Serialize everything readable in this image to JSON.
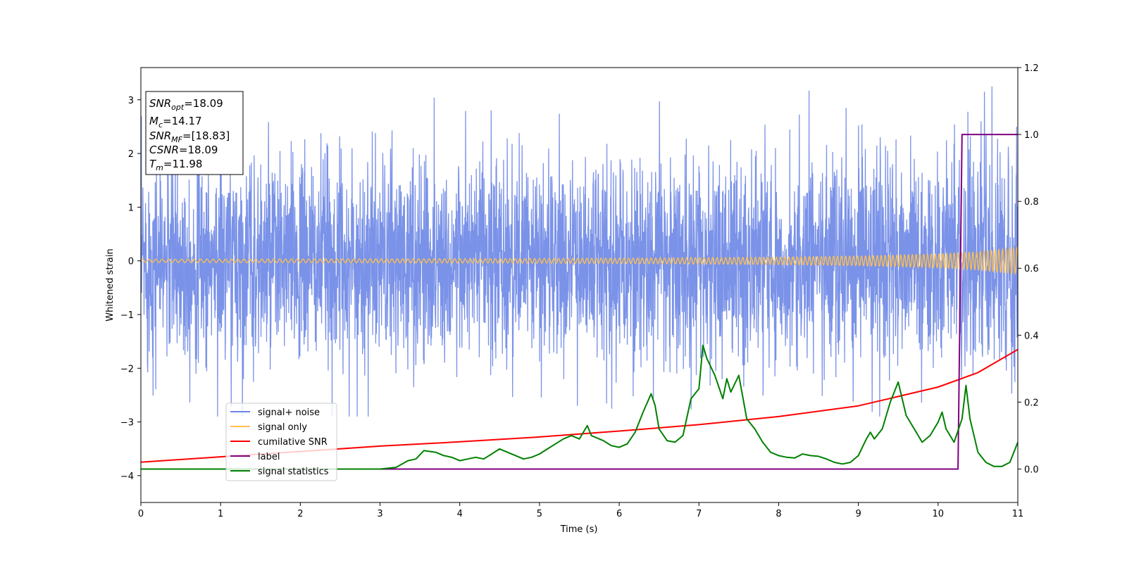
{
  "chart_data": {
    "type": "line",
    "xlabel": "Time (s)",
    "ylabel": "Whitened strain",
    "xlim": [
      0,
      11
    ],
    "ylim_left": [
      -4.5,
      3.6
    ],
    "ylim_right": [
      -0.1,
      1.2
    ],
    "x_ticks": [
      0,
      1,
      2,
      3,
      4,
      5,
      6,
      7,
      8,
      9,
      10,
      11
    ],
    "y_ticks_left": [
      -4,
      -3,
      -2,
      -1,
      0,
      1,
      2,
      3
    ],
    "y_ticks_right": [
      0.0,
      0.2,
      0.4,
      0.6,
      0.8,
      1.0,
      1.2
    ],
    "grid": false,
    "legend_position": "lower-left",
    "colors": {
      "signal_noise": "#6b86e6",
      "signal_only": "#ffc04d",
      "cumulative_snr": "#ff0000",
      "label": "#800080",
      "signal_statistics": "#008000"
    },
    "series": [
      {
        "name": "signal+ noise",
        "axis": "left",
        "amplitude_envelope": [
          -2.9,
          3.25
        ]
      },
      {
        "name": "signal only",
        "axis": "left",
        "x": [
          0,
          2,
          4,
          6,
          8,
          9,
          10,
          10.5,
          11
        ],
        "amplitude": [
          0.03,
          0.035,
          0.04,
          0.05,
          0.07,
          0.09,
          0.13,
          0.17,
          0.25
        ]
      },
      {
        "name": "cumilative SNR",
        "axis": "left",
        "x": [
          0,
          1,
          2,
          3,
          4,
          5,
          6,
          7,
          8,
          9,
          10,
          10.5,
          11
        ],
        "values": [
          -3.75,
          -3.65,
          -3.55,
          -3.45,
          -3.37,
          -3.28,
          -3.17,
          -3.05,
          -2.9,
          -2.7,
          -2.35,
          -2.08,
          -1.65
        ]
      },
      {
        "name": "label",
        "axis": "right",
        "x": [
          0,
          10.25,
          10.3,
          11
        ],
        "values": [
          0,
          0,
          1,
          1
        ]
      },
      {
        "name": "signal statistics",
        "axis": "right",
        "x": [
          0,
          3.0,
          3.2,
          3.35,
          3.45,
          3.55,
          3.7,
          3.8,
          3.9,
          4.0,
          4.1,
          4.2,
          4.3,
          4.4,
          4.5,
          4.6,
          4.7,
          4.8,
          4.9,
          5.0,
          5.1,
          5.2,
          5.3,
          5.4,
          5.5,
          5.6,
          5.65,
          5.7,
          5.8,
          5.9,
          6.0,
          6.1,
          6.2,
          6.3,
          6.4,
          6.45,
          6.5,
          6.6,
          6.7,
          6.8,
          6.9,
          7.0,
          7.05,
          7.1,
          7.2,
          7.3,
          7.35,
          7.4,
          7.5,
          7.6,
          7.7,
          7.8,
          7.9,
          8.0,
          8.1,
          8.2,
          8.3,
          8.4,
          8.5,
          8.6,
          8.7,
          8.8,
          8.9,
          9.0,
          9.1,
          9.15,
          9.2,
          9.3,
          9.4,
          9.5,
          9.6,
          9.7,
          9.8,
          9.9,
          10.0,
          10.05,
          10.1,
          10.2,
          10.3,
          10.35,
          10.4,
          10.5,
          10.6,
          10.7,
          10.8,
          10.9,
          11.0
        ],
        "values": [
          0.0,
          0.0,
          0.005,
          0.025,
          0.03,
          0.055,
          0.05,
          0.04,
          0.035,
          0.025,
          0.03,
          0.035,
          0.03,
          0.045,
          0.06,
          0.05,
          0.04,
          0.03,
          0.035,
          0.045,
          0.06,
          0.075,
          0.09,
          0.1,
          0.09,
          0.13,
          0.1,
          0.095,
          0.085,
          0.07,
          0.065,
          0.075,
          0.11,
          0.17,
          0.225,
          0.19,
          0.12,
          0.085,
          0.08,
          0.1,
          0.21,
          0.24,
          0.37,
          0.33,
          0.28,
          0.21,
          0.27,
          0.23,
          0.28,
          0.15,
          0.12,
          0.08,
          0.05,
          0.04,
          0.035,
          0.033,
          0.045,
          0.04,
          0.038,
          0.03,
          0.02,
          0.015,
          0.02,
          0.04,
          0.09,
          0.11,
          0.09,
          0.12,
          0.2,
          0.26,
          0.16,
          0.12,
          0.08,
          0.1,
          0.14,
          0.17,
          0.12,
          0.08,
          0.15,
          0.25,
          0.15,
          0.05,
          0.02,
          0.008,
          0.008,
          0.02,
          0.08
        ]
      }
    ]
  },
  "annotation": {
    "lines": [
      {
        "sym": "SNR",
        "sub": "opt",
        "val": "=18.09"
      },
      {
        "sym": "M",
        "sub": "c",
        "val": "=14.17"
      },
      {
        "sym": "SNR",
        "sub": "MF",
        "val": "=[18.83]"
      },
      {
        "sym": "CSNR",
        "sub": "",
        "val": "=18.09"
      },
      {
        "sym": "T",
        "sub": "m",
        "val": "=11.98"
      }
    ]
  },
  "legend": {
    "entries": [
      "signal+ noise",
      "signal only",
      "cumilative SNR",
      "label",
      "signal statistics"
    ]
  }
}
